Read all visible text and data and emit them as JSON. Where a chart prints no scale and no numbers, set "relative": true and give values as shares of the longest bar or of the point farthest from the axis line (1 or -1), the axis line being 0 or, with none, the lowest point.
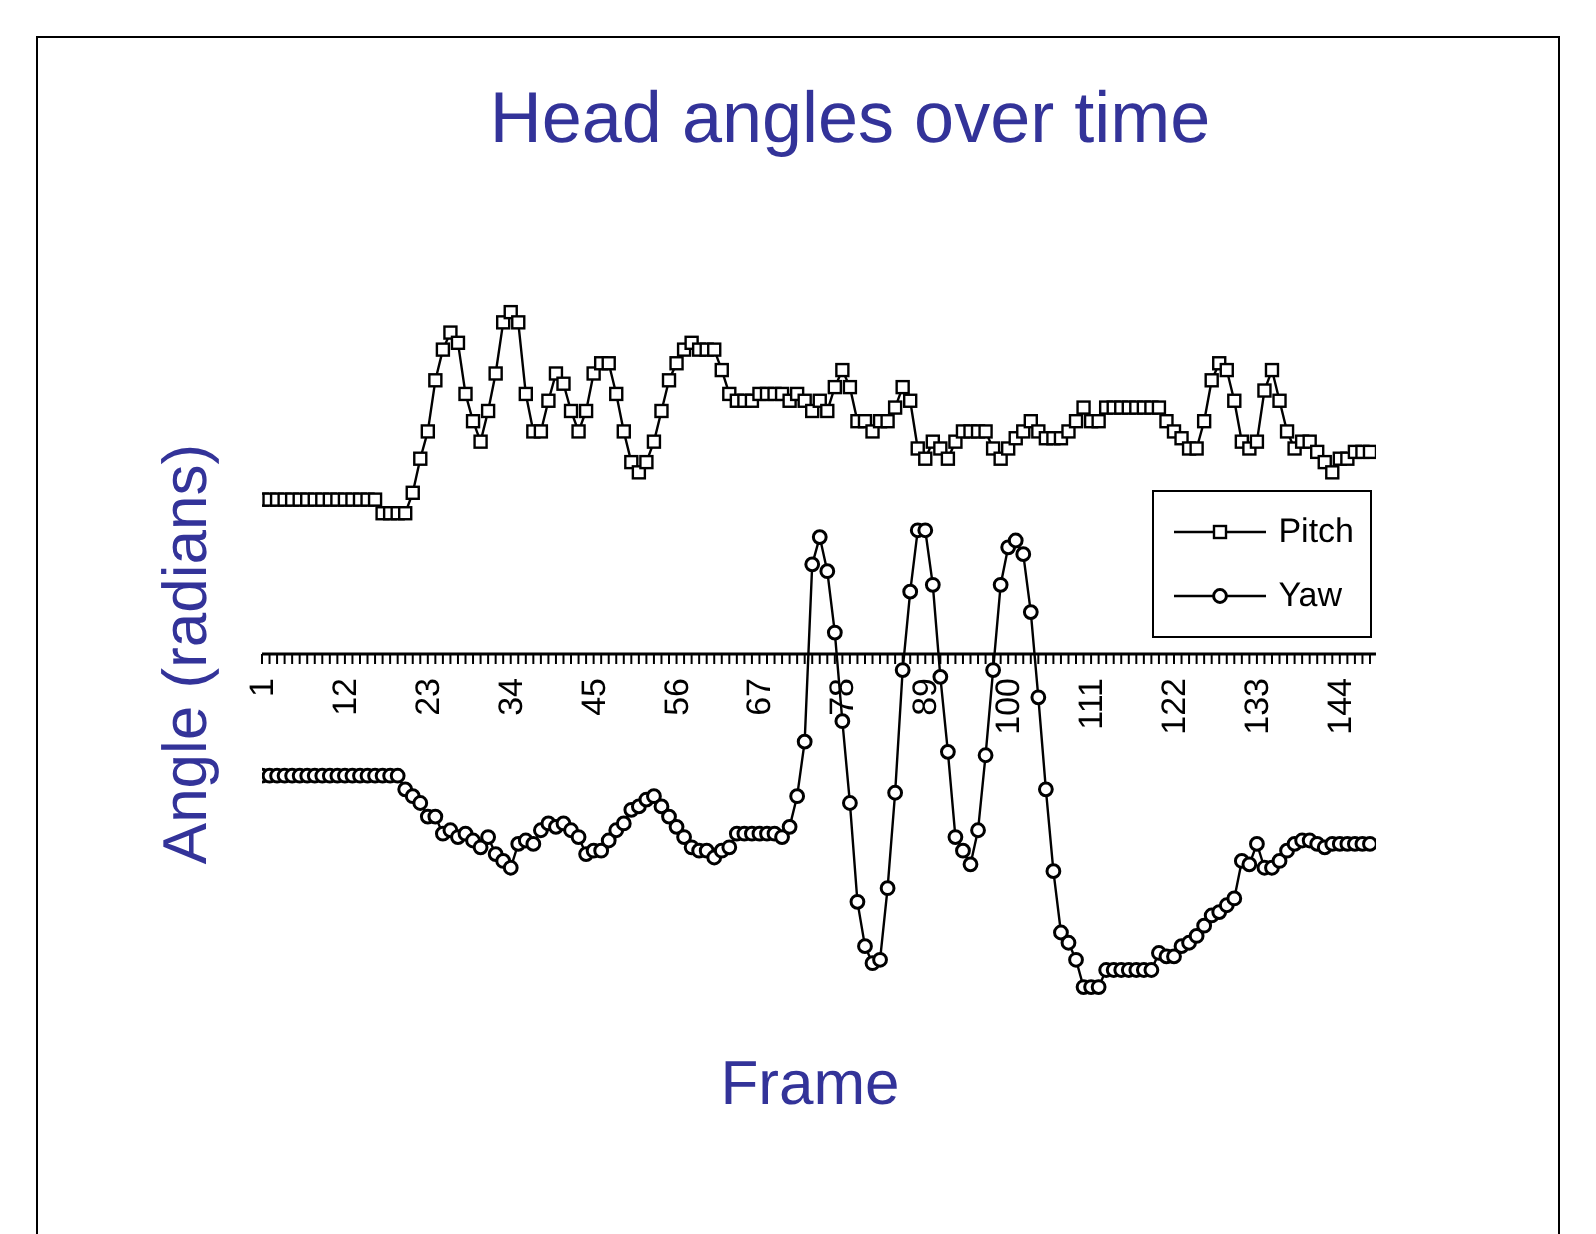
{
  "chart_data": {
    "type": "line",
    "title": "Head angles over time",
    "xlabel": "Frame",
    "ylabel": "Angle (radians)",
    "relative": true,
    "legend": "right",
    "categories": [
      "1",
      null,
      null,
      null,
      null,
      null,
      null,
      null,
      null,
      null,
      null,
      "12",
      null,
      null,
      null,
      null,
      null,
      null,
      null,
      null,
      null,
      null,
      "23",
      null,
      null,
      null,
      null,
      null,
      null,
      null,
      null,
      null,
      null,
      "34",
      null,
      null,
      null,
      null,
      null,
      null,
      null,
      null,
      null,
      null,
      "45",
      null,
      null,
      null,
      null,
      null,
      null,
      null,
      null,
      null,
      null,
      "56",
      null,
      null,
      null,
      null,
      null,
      null,
      null,
      null,
      null,
      null,
      "67",
      null,
      null,
      null,
      null,
      null,
      null,
      null,
      null,
      null,
      null,
      "78",
      null,
      null,
      null,
      null,
      null,
      null,
      null,
      null,
      null,
      null,
      "89",
      null,
      null,
      null,
      null,
      null,
      null,
      null,
      null,
      null,
      null,
      "100",
      null,
      null,
      null,
      null,
      null,
      null,
      null,
      null,
      null,
      null,
      "111",
      null,
      null,
      null,
      null,
      null,
      null,
      null,
      null,
      null,
      null,
      "122",
      null,
      null,
      null,
      null,
      null,
      null,
      null,
      null,
      null,
      null,
      "133",
      null,
      null,
      null,
      null,
      null,
      null,
      null,
      null,
      null,
      null,
      "144",
      null,
      null,
      null,
      null
    ],
    "series": [
      {
        "name": "Pitch",
        "color": "#000000",
        "marker": "square",
        "values": [
          0.45,
          0.45,
          0.45,
          0.45,
          0.45,
          0.45,
          0.45,
          0.45,
          0.45,
          0.45,
          0.45,
          0.45,
          0.45,
          0.45,
          0.45,
          0.45,
          0.41,
          0.41,
          0.41,
          0.41,
          0.47,
          0.57,
          0.65,
          0.8,
          0.89,
          0.94,
          0.91,
          0.76,
          0.68,
          0.62,
          0.71,
          0.82,
          0.97,
          1,
          0.97,
          0.76,
          0.65,
          0.65,
          0.74,
          0.82,
          0.79,
          0.71,
          0.65,
          0.71,
          0.82,
          0.85,
          0.85,
          0.76,
          0.65,
          0.56,
          0.53,
          0.56,
          0.62,
          0.71,
          0.8,
          0.85,
          0.89,
          0.91,
          0.89,
          0.89,
          0.89,
          0.83,
          0.76,
          0.74,
          0.74,
          0.74,
          0.76,
          0.76,
          0.76,
          0.76,
          0.74,
          0.76,
          0.74,
          0.71,
          0.74,
          0.71,
          0.78,
          0.83,
          0.78,
          0.68,
          0.68,
          0.65,
          0.68,
          0.68,
          0.72,
          0.78,
          0.74,
          0.6,
          0.57,
          0.62,
          0.6,
          0.57,
          0.62,
          0.65,
          0.65,
          0.65,
          0.65,
          0.6,
          0.57,
          0.6,
          0.63,
          0.65,
          0.68,
          0.65,
          0.63,
          0.63,
          0.63,
          0.65,
          0.68,
          0.72,
          0.68,
          0.68,
          0.72,
          0.72,
          0.72,
          0.72,
          0.72,
          0.72,
          0.72,
          0.72,
          0.68,
          0.65,
          0.63,
          0.6,
          0.6,
          0.68,
          0.8,
          0.85,
          0.83,
          0.74,
          0.62,
          0.6,
          0.62,
          0.77,
          0.83,
          0.74,
          0.65,
          0.6,
          0.62,
          0.62,
          0.59,
          0.56,
          0.53,
          0.57,
          0.57,
          0.59,
          0.59,
          0.59
        ]
      },
      {
        "name": "Yaw",
        "color": "#000000",
        "marker": "circle",
        "values": [
          -0.36,
          -0.36,
          -0.36,
          -0.36,
          -0.36,
          -0.36,
          -0.36,
          -0.36,
          -0.36,
          -0.36,
          -0.36,
          -0.36,
          -0.36,
          -0.36,
          -0.36,
          -0.36,
          -0.36,
          -0.36,
          -0.36,
          -0.4,
          -0.42,
          -0.44,
          -0.48,
          -0.48,
          -0.53,
          -0.52,
          -0.54,
          -0.53,
          -0.55,
          -0.57,
          -0.54,
          -0.59,
          -0.61,
          -0.63,
          -0.56,
          -0.55,
          -0.56,
          -0.52,
          -0.5,
          -0.51,
          -0.5,
          -0.52,
          -0.54,
          -0.59,
          -0.58,
          -0.58,
          -0.55,
          -0.52,
          -0.5,
          -0.46,
          -0.45,
          -0.43,
          -0.42,
          -0.45,
          -0.48,
          -0.51,
          -0.54,
          -0.57,
          -0.58,
          -0.58,
          -0.6,
          -0.58,
          -0.57,
          -0.53,
          -0.53,
          -0.53,
          -0.53,
          -0.53,
          -0.53,
          -0.54,
          -0.51,
          -0.42,
          -0.26,
          0.26,
          0.34,
          0.24,
          0.06,
          -0.2,
          -0.44,
          -0.73,
          -0.86,
          -0.91,
          -0.9,
          -0.69,
          -0.41,
          -0.05,
          0.18,
          0.36,
          0.36,
          0.2,
          -0.07,
          -0.29,
          -0.54,
          -0.58,
          -0.62,
          -0.52,
          -0.3,
          -0.05,
          0.2,
          0.31,
          0.33,
          0.29,
          0.12,
          -0.13,
          -0.4,
          -0.64,
          -0.82,
          -0.85,
          -0.9,
          -0.98,
          -0.98,
          -0.98,
          -0.93,
          -0.93,
          -0.93,
          -0.93,
          -0.93,
          -0.93,
          -0.93,
          -0.88,
          -0.89,
          -0.89,
          -0.86,
          -0.85,
          -0.83,
          -0.8,
          -0.77,
          -0.76,
          -0.74,
          -0.72,
          -0.61,
          -0.62,
          -0.56,
          -0.63,
          -0.63,
          -0.61,
          -0.58,
          -0.56,
          -0.55,
          -0.55,
          -0.56,
          -0.57,
          -0.56,
          -0.56,
          -0.56,
          -0.56,
          -0.56,
          -0.56
        ]
      }
    ]
  }
}
